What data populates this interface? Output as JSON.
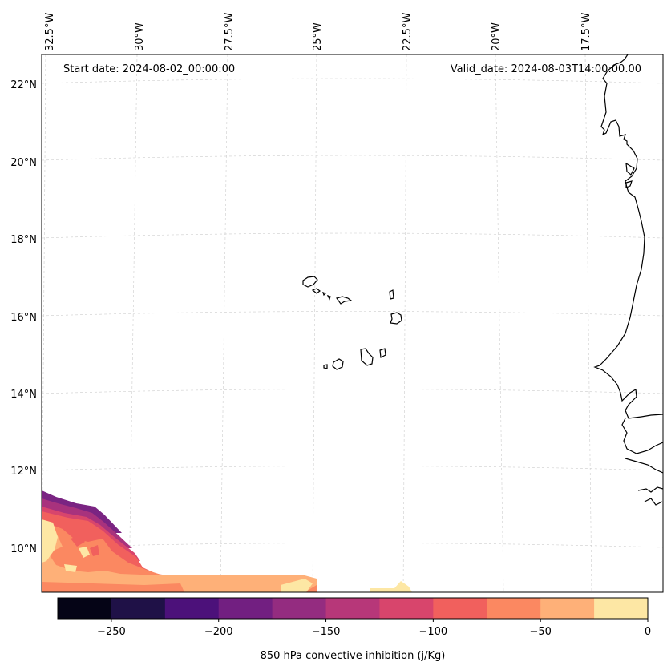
{
  "map": {
    "start_date": "Start date: 2024-08-02_00:00:00",
    "valid_date": "Valid_date: 2024-08-03T14:00:00.00",
    "lon_labels": [
      "32.5°W",
      "30°W",
      "27.5°W",
      "25°W",
      "22.5°W",
      "20°W",
      "17.5°W"
    ],
    "lat_labels": [
      "22°N",
      "20°N",
      "18°N",
      "16°N",
      "14°N",
      "12°N",
      "10°N"
    ],
    "gridlines": "on",
    "coastline_color": "#000000",
    "land_features": [
      "Cape Verde islands",
      "West African coastline"
    ]
  },
  "colorbar": {
    "label": "850 hPa convective inhibition (j/Kg)",
    "tick_labels": [
      "−250",
      "−200",
      "−150",
      "−100",
      "−50",
      "0"
    ],
    "levels": [
      -275,
      -250,
      -225,
      -200,
      -175,
      -150,
      -125,
      -100,
      -75,
      -50,
      -25,
      0
    ],
    "colors": [
      "#050416",
      "#1f1147",
      "#4c117a",
      "#721f81",
      "#942c80",
      "#b73779",
      "#d8456c",
      "#f1605d",
      "#fb8861",
      "#feb078",
      "#fde7a4"
    ]
  }
}
